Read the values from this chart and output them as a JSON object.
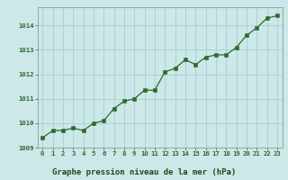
{
  "x": [
    0,
    1,
    2,
    3,
    4,
    5,
    6,
    7,
    8,
    9,
    10,
    11,
    12,
    13,
    14,
    15,
    16,
    17,
    18,
    19,
    20,
    21,
    22,
    23
  ],
  "y": [
    1009.4,
    1009.7,
    1009.7,
    1009.8,
    1009.7,
    1010.0,
    1010.1,
    1010.6,
    1010.9,
    1011.0,
    1011.35,
    1011.35,
    1012.1,
    1012.25,
    1012.6,
    1012.4,
    1012.7,
    1012.8,
    1012.8,
    1013.1,
    1013.6,
    1013.9,
    1014.3,
    1014.4
  ],
  "line_color": "#2d6a2d",
  "marker_color": "#2d6a2d",
  "bg_color": "#cce8e8",
  "grid_color": "#aacece",
  "xlabel": "Graphe pression niveau de la mer (hPa)",
  "ylim": [
    1009.0,
    1014.75
  ],
  "yticks": [
    1009,
    1010,
    1011,
    1012,
    1013,
    1014
  ],
  "xticks": [
    0,
    1,
    2,
    3,
    4,
    5,
    6,
    7,
    8,
    9,
    10,
    11,
    12,
    13,
    14,
    15,
    16,
    17,
    18,
    19,
    20,
    21,
    22,
    23
  ],
  "tick_color": "#2d6a2d",
  "tick_fontsize": 5.2,
  "xlabel_fontsize": 6.5,
  "xlabel_color": "#1a4a1a"
}
